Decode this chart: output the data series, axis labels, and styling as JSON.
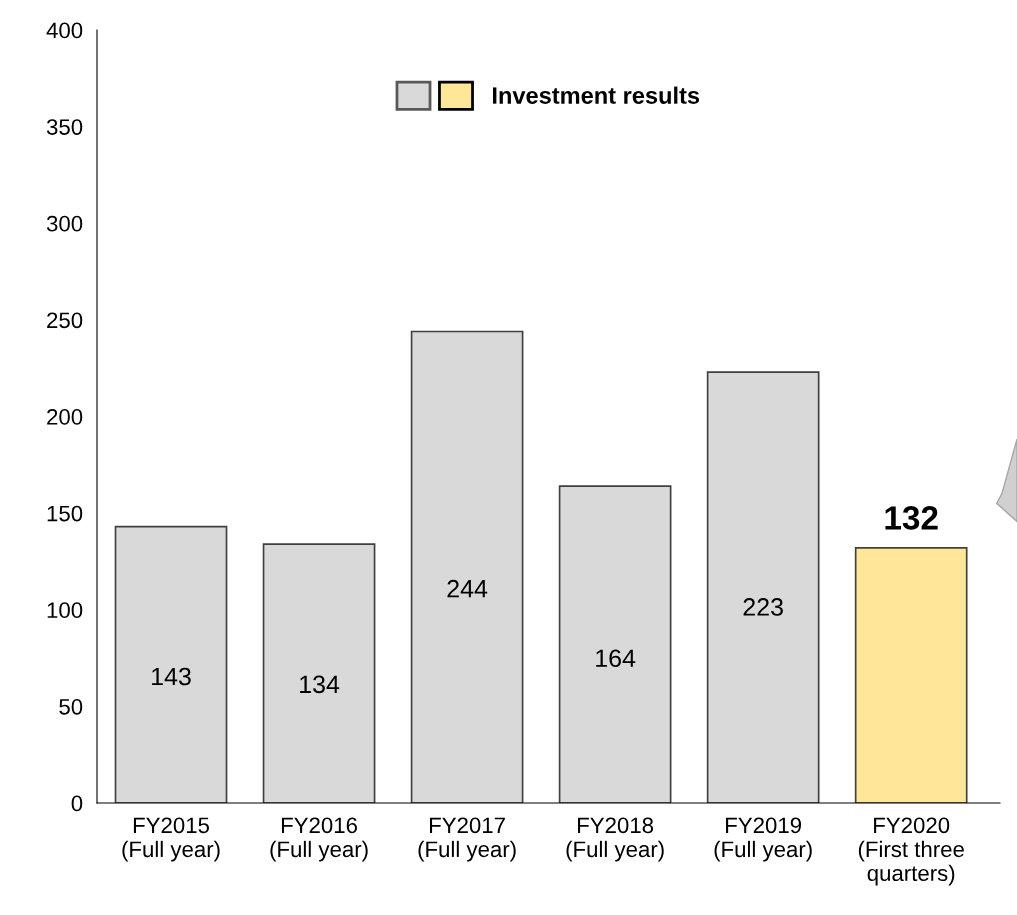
{
  "chart_data": {
    "type": "bar",
    "categories": [
      "FY2015\n(Full year)",
      "FY2016\n(Full year)",
      "FY2017\n(Full year)",
      "FY2018\n(Full year)",
      "FY2019\n(Full year)",
      "FY2020\n(First three\nquarters)"
    ],
    "series": [
      {
        "name": "Investment results",
        "values": [
          143,
          134,
          244,
          164,
          223,
          132
        ],
        "colors": [
          "#d9d9d9",
          "#d9d9d9",
          "#d9d9d9",
          "#d9d9d9",
          "#d9d9d9",
          "#ffe699"
        ]
      }
    ],
    "ylim": [
      0,
      400
    ],
    "yticks": [
      0,
      50,
      100,
      150,
      200,
      250,
      300,
      350,
      400
    ],
    "grid": false,
    "legend": "top",
    "data_labels": true
  }
}
